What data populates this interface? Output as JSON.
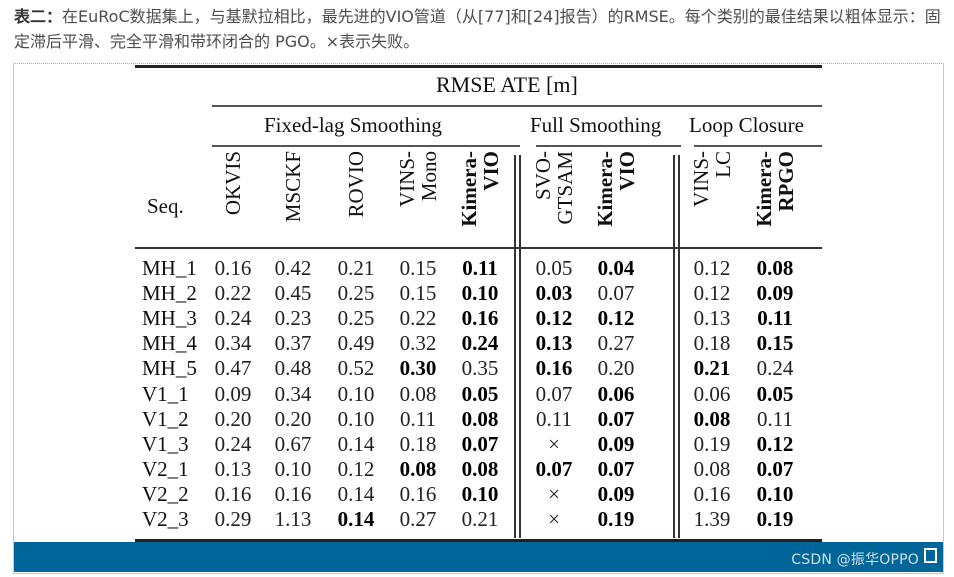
{
  "caption": {
    "label": "表二：",
    "text": "在EuRoC数据集上，与基默拉相比，最先进的VIO管道（从[77]和[24]报告）的RMSE。每个类别的最佳结果以粗体显示：固定滞后平滑、完全平滑和带环闭合的 PGO。×表示失败。"
  },
  "table": {
    "super_header": "RMSE ATE [m]",
    "groups": [
      {
        "label": "Fixed-lag Smoothing"
      },
      {
        "label": "Full Smoothing"
      },
      {
        "label": "Loop Closure"
      }
    ],
    "seq_header": "Seq.",
    "columns": [
      {
        "line1": "OKVIS",
        "line2": "",
        "bold": false
      },
      {
        "line1": "MSCKF",
        "line2": "",
        "bold": false
      },
      {
        "line1": "ROVIO",
        "line2": "",
        "bold": false
      },
      {
        "line1": "VINS-",
        "line2": "Mono",
        "bold": false
      },
      {
        "line1": "Kimera-",
        "line2": "VIO",
        "bold": true
      },
      {
        "line1": "SVO-",
        "line2": "GTSAM",
        "bold": false
      },
      {
        "line1": "Kimera-",
        "line2": "VIO",
        "bold": true
      },
      {
        "line1": "VINS-",
        "line2": "LC",
        "bold": false
      },
      {
        "line1": "Kimera-",
        "line2": "RPGO",
        "bold": true
      }
    ],
    "rows": [
      {
        "seq": "MH_1",
        "values": [
          "0.16",
          "0.42",
          "0.21",
          "0.15",
          "0.11",
          "0.05",
          "0.04",
          "0.12",
          "0.08"
        ],
        "bold": [
          4,
          6,
          8
        ]
      },
      {
        "seq": "MH_2",
        "values": [
          "0.22",
          "0.45",
          "0.25",
          "0.15",
          "0.10",
          "0.03",
          "0.07",
          "0.12",
          "0.09"
        ],
        "bold": [
          4,
          5,
          8
        ]
      },
      {
        "seq": "MH_3",
        "values": [
          "0.24",
          "0.23",
          "0.25",
          "0.22",
          "0.16",
          "0.12",
          "0.12",
          "0.13",
          "0.11"
        ],
        "bold": [
          4,
          5,
          6,
          8
        ]
      },
      {
        "seq": "MH_4",
        "values": [
          "0.34",
          "0.37",
          "0.49",
          "0.32",
          "0.24",
          "0.13",
          "0.27",
          "0.18",
          "0.15"
        ],
        "bold": [
          4,
          5,
          8
        ]
      },
      {
        "seq": "MH_5",
        "values": [
          "0.47",
          "0.48",
          "0.52",
          "0.30",
          "0.35",
          "0.16",
          "0.20",
          "0.21",
          "0.24"
        ],
        "bold": [
          3,
          5,
          7
        ]
      },
      {
        "seq": "V1_1",
        "values": [
          "0.09",
          "0.34",
          "0.10",
          "0.08",
          "0.05",
          "0.07",
          "0.06",
          "0.06",
          "0.05"
        ],
        "bold": [
          4,
          6,
          8
        ]
      },
      {
        "seq": "V1_2",
        "values": [
          "0.20",
          "0.20",
          "0.10",
          "0.11",
          "0.08",
          "0.11",
          "0.07",
          "0.08",
          "0.11"
        ],
        "bold": [
          4,
          6,
          7
        ]
      },
      {
        "seq": "V1_3",
        "values": [
          "0.24",
          "0.67",
          "0.14",
          "0.18",
          "0.07",
          "×",
          "0.09",
          "0.19",
          "0.12"
        ],
        "bold": [
          4,
          6,
          8
        ]
      },
      {
        "seq": "V2_1",
        "values": [
          "0.13",
          "0.10",
          "0.12",
          "0.08",
          "0.08",
          "0.07",
          "0.07",
          "0.08",
          "0.07"
        ],
        "bold": [
          3,
          4,
          5,
          6,
          8
        ]
      },
      {
        "seq": "V2_2",
        "values": [
          "0.16",
          "0.16",
          "0.14",
          "0.16",
          "0.10",
          "×",
          "0.09",
          "0.16",
          "0.10"
        ],
        "bold": [
          4,
          6,
          8
        ]
      },
      {
        "seq": "V2_3",
        "values": [
          "0.29",
          "1.13",
          "0.14",
          "0.27",
          "0.21",
          "×",
          "0.19",
          "1.39",
          "0.19"
        ],
        "bold": [
          2,
          6,
          8
        ]
      }
    ]
  },
  "footer": {
    "watermark": "CSDN @振华OPPO",
    "bg_color": "#006699"
  }
}
